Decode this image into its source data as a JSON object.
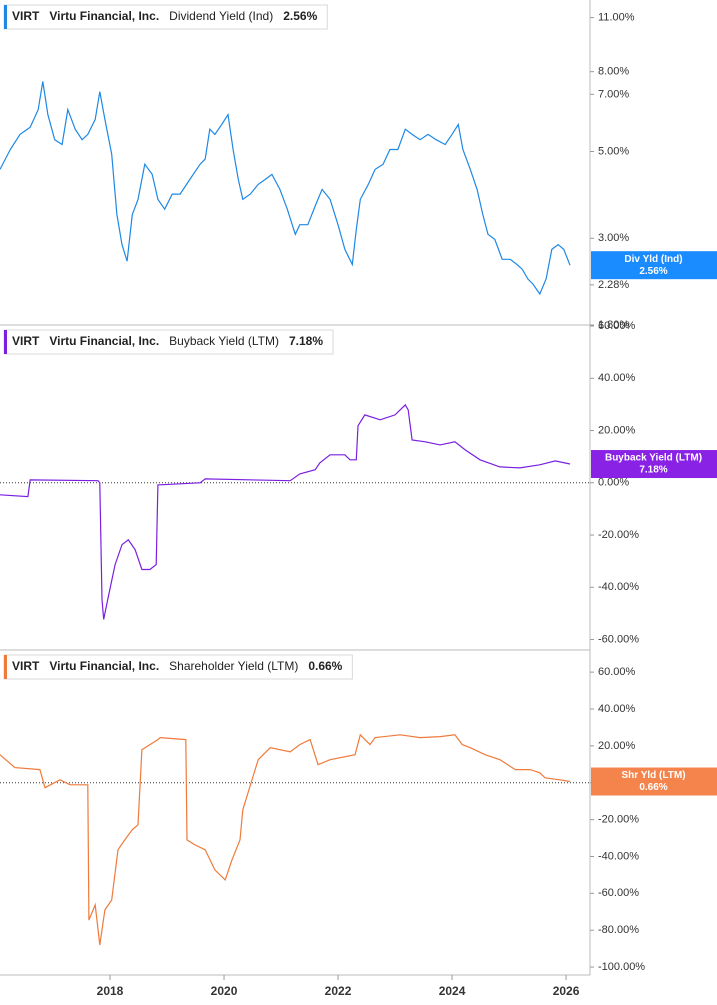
{
  "chart_data": [
    {
      "type": "line",
      "ticker": "VIRT",
      "company": "Virtu Financial, Inc.",
      "log_scale": true,
      "badge_name": "Div Yld (Ind)",
      "last_label": "2.56%",
      "xlim": [
        2016.07,
        2026.42
      ],
      "ylim": [
        1.8,
        12.2
      ],
      "yticks": [
        {
          "value": 11,
          "label": "11.00%"
        },
        {
          "value": 8,
          "label": "8.00%"
        },
        {
          "value": 7,
          "label": "7.00%"
        },
        {
          "value": 5,
          "label": "5.00%"
        },
        {
          "value": 3,
          "label": "3.00%"
        },
        {
          "value": 2.28,
          "label": "2.28%"
        },
        {
          "value": 1.8,
          "label": "1.80%"
        }
      ],
      "x": [
        2016.07,
        2016.25,
        2016.42,
        2016.6,
        2016.74,
        2016.82,
        2016.91,
        2017.03,
        2017.16,
        2017.26,
        2017.39,
        2017.51,
        2017.61,
        2017.74,
        2017.82,
        2017.91,
        2018.03,
        2018.12,
        2018.21,
        2018.3,
        2018.39,
        2018.49,
        2018.61,
        2018.74,
        2018.84,
        2018.96,
        2019.09,
        2019.23,
        2019.4,
        2019.58,
        2019.67,
        2019.75,
        2019.84,
        2019.96,
        2020.07,
        2020.16,
        2020.25,
        2020.33,
        2020.46,
        2020.6,
        2020.72,
        2020.84,
        2020.98,
        2021.11,
        2021.25,
        2021.33,
        2021.47,
        2021.61,
        2021.72,
        2021.86,
        2022.0,
        2022.12,
        2022.25,
        2022.32,
        2022.39,
        2022.53,
        2022.65,
        2022.79,
        2022.91,
        2023.05,
        2023.18,
        2023.3,
        2023.44,
        2023.58,
        2023.72,
        2023.88,
        2024.0,
        2024.11,
        2024.19,
        2024.32,
        2024.44,
        2024.54,
        2024.63,
        2024.75,
        2024.88,
        2025.02,
        2025.14,
        2025.23,
        2025.33,
        2025.42,
        2025.54,
        2025.65,
        2025.75,
        2025.86,
        2025.96,
        2026.07
      ],
      "series": [
        {
          "name": "Dividend Yield (Ind)",
          "color": "#1e88e5",
          "badge_color": "#1a8cff",
          "values": [
            4.5,
            5.06,
            5.53,
            5.77,
            6.4,
            7.55,
            6.21,
            5.36,
            5.21,
            6.4,
            5.7,
            5.36,
            5.53,
            6.04,
            7.11,
            6.04,
            4.92,
            3.45,
            2.89,
            2.62,
            3.45,
            3.77,
            4.64,
            4.37,
            3.77,
            3.56,
            3.89,
            3.89,
            4.24,
            4.64,
            4.78,
            5.7,
            5.53,
            5.86,
            6.21,
            5.06,
            4.24,
            3.77,
            3.89,
            4.12,
            4.24,
            4.37,
            4.0,
            3.56,
            3.07,
            3.25,
            3.25,
            3.66,
            4.0,
            3.77,
            3.25,
            2.81,
            2.57,
            3.16,
            3.77,
            4.12,
            4.5,
            4.64,
            5.06,
            5.06,
            5.7,
            5.53,
            5.36,
            5.53,
            5.36,
            5.21,
            5.53,
            5.86,
            5.06,
            4.5,
            4.0,
            3.45,
            3.07,
            2.98,
            2.65,
            2.65,
            2.57,
            2.5,
            2.36,
            2.29,
            2.16,
            2.36,
            2.81,
            2.89,
            2.81,
            2.56
          ]
        }
      ]
    },
    {
      "type": "line",
      "ticker": "VIRT",
      "company": "Virtu Financial, Inc.",
      "zero_line": true,
      "badge_name": "Buyback Yield (LTM)",
      "last_label": "7.18%",
      "xlim": [
        2016.07,
        2026.42
      ],
      "ylim": [
        -64,
        60.4
      ],
      "yticks": [
        {
          "value": 60,
          "label": "60.00%"
        },
        {
          "value": 40,
          "label": "40.00%"
        },
        {
          "value": 20,
          "label": "20.00%"
        },
        {
          "value": 0,
          "label": "0.00%"
        },
        {
          "value": -20,
          "label": "-20.00%"
        },
        {
          "value": -40,
          "label": "-40.00%"
        },
        {
          "value": -60,
          "label": "-60.00%"
        }
      ],
      "x": [
        2016.07,
        2016.56,
        2016.6,
        2017.79,
        2017.82,
        2017.86,
        2017.89,
        2017.96,
        2018.09,
        2018.21,
        2018.32,
        2018.44,
        2018.56,
        2018.7,
        2018.81,
        2018.84,
        2019.58,
        2019.67,
        2021.16,
        2021.33,
        2021.6,
        2021.68,
        2021.86,
        2022.12,
        2022.21,
        2022.32,
        2022.35,
        2022.47,
        2022.74,
        2023.0,
        2023.18,
        2023.23,
        2023.3,
        2023.53,
        2023.79,
        2024.05,
        2024.23,
        2024.49,
        2024.84,
        2025.19,
        2025.54,
        2025.81,
        2026.07
      ],
      "series": [
        {
          "name": "Buyback Yield (LTM)",
          "color": "#7b1fe0",
          "badge_color": "#8a22e6",
          "values": [
            -4.6,
            -5.3,
            1.1,
            0.8,
            0,
            -44.7,
            -52.3,
            -44.7,
            -31.3,
            -23.7,
            -21.8,
            -25.6,
            -33.2,
            -33.2,
            -31.3,
            -0.8,
            0,
            1.5,
            0.8,
            3.4,
            5,
            7.6,
            10.7,
            10.7,
            8.8,
            8.8,
            21.8,
            26,
            24.1,
            26,
            29.8,
            27.9,
            16.4,
            15.7,
            14.5,
            15.7,
            12.6,
            8.8,
            6.1,
            5.7,
            6.9,
            8.4,
            7.18
          ]
        }
      ]
    },
    {
      "type": "line",
      "ticker": "VIRT",
      "company": "Virtu Financial, Inc.",
      "zero_line": true,
      "badge_name": "Shr Yld (LTM)",
      "last_label": "0.66%",
      "xlim": [
        2016.07,
        2026.42
      ],
      "ylim": [
        -104.3,
        72
      ],
      "xticks": [
        2018,
        2020,
        2022,
        2024,
        2026
      ],
      "yticks": [
        {
          "value": 60,
          "label": "60.00%"
        },
        {
          "value": 40,
          "label": "40.00%"
        },
        {
          "value": 20,
          "label": "20.00%"
        },
        {
          "value": 0,
          "label": "0.00%"
        },
        {
          "value": -20,
          "label": "-20.00%"
        },
        {
          "value": -40,
          "label": "-40.00%"
        },
        {
          "value": -60,
          "label": "-60.00%"
        },
        {
          "value": -80,
          "label": "-80.00%"
        },
        {
          "value": -100,
          "label": "-100.00%"
        }
      ],
      "x": [
        2016.07,
        2016.33,
        2016.77,
        2016.86,
        2017.12,
        2017.3,
        2017.61,
        2017.63,
        2017.74,
        2017.82,
        2017.91,
        2018.03,
        2018.14,
        2018.26,
        2018.39,
        2018.49,
        2018.56,
        2018.7,
        2018.84,
        2018.88,
        2019.33,
        2019.35,
        2019.49,
        2019.67,
        2019.84,
        2020.02,
        2020.14,
        2020.28,
        2020.33,
        2020.6,
        2020.81,
        2021.16,
        2021.33,
        2021.51,
        2021.65,
        2021.86,
        2022.3,
        2022.39,
        2022.56,
        2022.65,
        2023.09,
        2023.44,
        2023.79,
        2024.05,
        2024.18,
        2024.32,
        2024.58,
        2024.84,
        2025.11,
        2025.37,
        2025.54,
        2025.63,
        2025.89,
        2026.07
      ],
      "series": [
        {
          "name": "Shareholder Yield (LTM)",
          "color": "#f07a3a",
          "badge_color": "#f4844c",
          "values": [
            15.2,
            8.2,
            7.1,
            -2.7,
            1.6,
            -1.1,
            -1.1,
            -74.5,
            -66.3,
            -88,
            -69,
            -63.6,
            -36.4,
            -31,
            -25.5,
            -22.8,
            17.9,
            20.7,
            23.4,
            24.5,
            23.4,
            -31,
            -33.7,
            -36.4,
            -47.3,
            -52.7,
            -41.8,
            -31,
            -14.7,
            12.5,
            19,
            16.8,
            20.7,
            23.4,
            9.8,
            12.5,
            15.2,
            26,
            20.7,
            24.5,
            26,
            24.5,
            25,
            26,
            20.7,
            19,
            15.2,
            12.5,
            7.1,
            7.1,
            5.4,
            2.7,
            1.6,
            0.66
          ]
        }
      ]
    }
  ]
}
